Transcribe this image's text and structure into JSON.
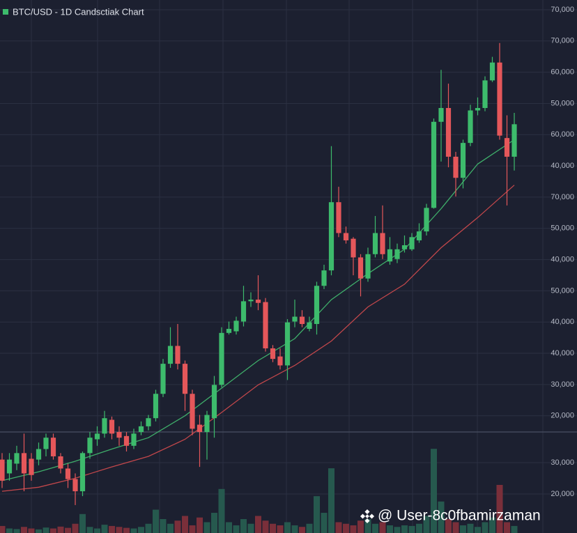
{
  "chart_data": {
    "type": "candlestick",
    "title": "BTC/USD - 1D Candsctiak Chart",
    "up_color": "#3dbb6c",
    "down_color": "#e5575a",
    "grid": true,
    "ylim": [
      5560,
      71200
    ],
    "yticks": [
      {
        "value": 70000,
        "label": "70,000"
      },
      {
        "label": "70,000"
      },
      {
        "label": "60,000"
      },
      {
        "label": "50,000"
      },
      {
        "label": "60,000"
      },
      {
        "label": "40,000"
      },
      {
        "label": "70,000"
      },
      {
        "label": "50,000"
      },
      {
        "label": "40,000"
      },
      {
        "label": "50,000"
      },
      {
        "label": "40,000"
      },
      {
        "label": "40,000"
      },
      {
        "label": "30,000"
      },
      {
        "value": 20000,
        "label": "20,000"
      }
    ],
    "candles": {
      "open": [
        14600,
        12900,
        14100,
        15400,
        14700,
        14600,
        15900,
        17300,
        15000,
        13500,
        12200,
        10700,
        15400,
        17100,
        17800,
        19500,
        18000,
        17500,
        16300,
        18000,
        18700,
        19700,
        22700,
        26400,
        28600,
        26400,
        22700,
        18900,
        18000,
        19700,
        23800,
        30200,
        30400,
        31600,
        34100,
        34300,
        34000,
        28300,
        27300,
        26200,
        31600,
        32200,
        30700,
        31300,
        36000,
        37900,
        46300,
        42500,
        41800,
        39500,
        36900,
        39900,
        42500,
        39000,
        39300,
        40500,
        40500,
        41600,
        42700,
        45600,
        56200,
        57900,
        51900,
        49300,
        53600,
        57600,
        57900,
        61300,
        63500,
        54200,
        51900
      ],
      "high": [
        15400,
        15400,
        16300,
        17800,
        15400,
        16700,
        17800,
        17800,
        15400,
        14100,
        12900,
        15600,
        18000,
        18700,
        20600,
        19900,
        18700,
        18000,
        18400,
        19300,
        20100,
        23200,
        27000,
        30900,
        31300,
        26800,
        23200,
        20100,
        20600,
        24900,
        30900,
        31600,
        32200,
        36000,
        35200,
        37300,
        34500,
        28700,
        28300,
        31900,
        34300,
        33000,
        32200,
        36500,
        38600,
        53200,
        48200,
        43300,
        42000,
        39900,
        40700,
        44600,
        45900,
        42000,
        41200,
        42200,
        42500,
        43700,
        46100,
        56600,
        62600,
        60900,
        52500,
        54000,
        58300,
        59200,
        61800,
        64200,
        65900,
        57000,
        57300
      ],
      "low": [
        11100,
        12000,
        13300,
        10700,
        12000,
        13900,
        15000,
        14600,
        12900,
        11100,
        9000,
        10100,
        14700,
        16300,
        17300,
        17100,
        16300,
        15600,
        15900,
        17600,
        18200,
        19300,
        22300,
        25900,
        25700,
        20600,
        17600,
        13700,
        14600,
        17300,
        23500,
        30000,
        30000,
        31000,
        33400,
        33000,
        27900,
        26600,
        25700,
        24400,
        30900,
        30900,
        30400,
        30000,
        35600,
        37300,
        42000,
        41200,
        37300,
        34700,
        36500,
        39500,
        39300,
        38600,
        38800,
        40100,
        40300,
        41300,
        42200,
        45500,
        51300,
        50600,
        47000,
        48000,
        53200,
        57000,
        57500,
        61100,
        54000,
        45900,
        50200
      ],
      "close": [
        12000,
        14600,
        15400,
        12900,
        12700,
        15900,
        17300,
        15000,
        13500,
        12200,
        10700,
        15400,
        17300,
        17800,
        19700,
        17800,
        17300,
        16300,
        17800,
        18700,
        19700,
        22700,
        26400,
        28600,
        26400,
        22700,
        18400,
        18000,
        20100,
        23800,
        30200,
        30700,
        31700,
        34100,
        34300,
        33900,
        28300,
        27000,
        26200,
        31500,
        32200,
        31300,
        31500,
        36000,
        37900,
        46300,
        42500,
        41600,
        39500,
        36900,
        39900,
        42500,
        39900,
        40500,
        40500,
        41000,
        42000,
        42700,
        45600,
        56200,
        57900,
        51900,
        49300,
        53600,
        57600,
        57900,
        61300,
        63500,
        54500,
        51900,
        55900
      ]
    },
    "moving_averages": [
      {
        "color": "#3fae6a",
        "x": [
          0,
          5,
          10,
          15,
          20,
          25,
          30,
          35,
          40,
          45,
          50,
          55,
          60,
          65,
          70
        ],
        "values": [
          12000,
          13100,
          14400,
          15900,
          17300,
          20000,
          23400,
          26800,
          29500,
          34300,
          37500,
          40500,
          45500,
          51000,
          54000
        ]
      },
      {
        "color": "#c2474b",
        "x": [
          0,
          5,
          10,
          15,
          20,
          25,
          30,
          35,
          40,
          45,
          50,
          55,
          60,
          65,
          70
        ],
        "values": [
          10700,
          11200,
          12300,
          13700,
          15000,
          17100,
          20400,
          23800,
          26200,
          29200,
          33400,
          36200,
          40700,
          44400,
          48400
        ]
      }
    ],
    "volume": {
      "up_color": "#26594e",
      "down_color": "#7a2f3a",
      "ylim": [
        7557,
        39776
      ],
      "yticks": [
        {
          "value": 30000,
          "label": "30,000"
        },
        {
          "value": 20000,
          "label": "20,000"
        }
      ],
      "values": [
        9800,
        9000,
        8800,
        9500,
        9000,
        8700,
        9300,
        9000,
        9600,
        9200,
        10500,
        13600,
        9500,
        9000,
        10200,
        9800,
        9500,
        9200,
        9000,
        9500,
        10500,
        15000,
        12000,
        10500,
        11500,
        13000,
        10000,
        12500,
        11000,
        14000,
        21600,
        11000,
        10000,
        12000,
        10500,
        13000,
        11500,
        10500,
        10000,
        11000,
        10000,
        9500,
        10500,
        19300,
        14000,
        28200,
        11000,
        10500,
        10000,
        11500,
        12000,
        10500,
        11000,
        10000,
        9500,
        10000,
        9800,
        10500,
        13000,
        34400,
        17600,
        12000,
        11000,
        10000,
        10500,
        9500,
        11000,
        12500,
        22900,
        11000,
        9800
      ]
    },
    "watermark": "@ User-8c0fbamirzaman"
  }
}
